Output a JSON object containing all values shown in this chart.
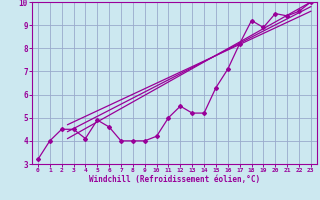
{
  "xlabel": "Windchill (Refroidissement éolien,°C)",
  "x_data": [
    0,
    1,
    2,
    3,
    4,
    5,
    6,
    7,
    8,
    9,
    10,
    11,
    12,
    13,
    14,
    15,
    16,
    17,
    18,
    19,
    20,
    21,
    22,
    23
  ],
  "y_main": [
    3.2,
    4.0,
    4.5,
    4.5,
    4.1,
    4.9,
    4.6,
    4.0,
    4.0,
    4.0,
    4.2,
    5.0,
    5.5,
    5.2,
    5.2,
    6.3,
    7.1,
    8.2,
    9.2,
    8.9,
    9.5,
    9.4,
    9.6,
    10.0
  ],
  "line_color": "#990099",
  "bg_color": "#cce8f0",
  "grid_color": "#99aacc",
  "xlim": [
    -0.5,
    23.5
  ],
  "ylim": [
    3,
    10
  ],
  "xticks": [
    0,
    1,
    2,
    3,
    4,
    5,
    6,
    7,
    8,
    9,
    10,
    11,
    12,
    13,
    14,
    15,
    16,
    17,
    18,
    19,
    20,
    21,
    22,
    23
  ],
  "yticks": [
    3,
    4,
    5,
    6,
    7,
    8,
    9,
    10
  ],
  "reg_x_start": 2.5,
  "reg_x_end": 23,
  "reg_lines": [
    [
      4.1,
      10.0
    ],
    [
      4.4,
      9.8
    ],
    [
      4.7,
      9.6
    ]
  ]
}
